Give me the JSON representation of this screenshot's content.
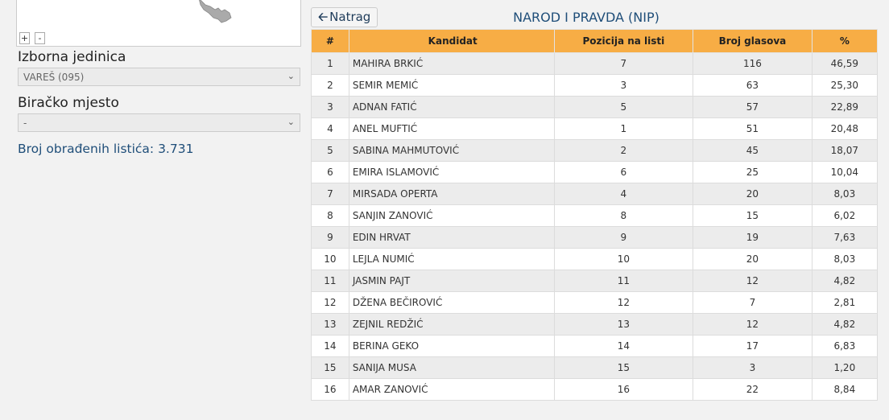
{
  "left": {
    "zoom_in": "+",
    "zoom_out": "-",
    "constituency_label": "Izborna jedinica",
    "constituency_value": "VAREŠ (095)",
    "polling_label": "Biračko mjesto",
    "polling_value": "-",
    "processed_text": "Broj obrađenih listića: 3.731"
  },
  "header": {
    "back_label": "Natrag",
    "party_title": "NAROD I PRAVDA (NIP)"
  },
  "table": {
    "columns": [
      "#",
      "Kandidat",
      "Pozicija na listi",
      "Broj glasova",
      "%"
    ],
    "rows": [
      [
        "1",
        "MAHIRA BRKIĆ",
        "7",
        "116",
        "46,59"
      ],
      [
        "2",
        "SEMIR MEMIĆ",
        "3",
        "63",
        "25,30"
      ],
      [
        "3",
        "ADNAN FATIĆ",
        "5",
        "57",
        "22,89"
      ],
      [
        "4",
        "ANEL MUFTIĆ",
        "1",
        "51",
        "20,48"
      ],
      [
        "5",
        "SABINA MAHMUTOVIĆ",
        "2",
        "45",
        "18,07"
      ],
      [
        "6",
        "EMIRA ISLAMOVIĆ",
        "6",
        "25",
        "10,04"
      ],
      [
        "7",
        "MIRSADA OPERTA",
        "4",
        "20",
        "8,03"
      ],
      [
        "8",
        "SANJIN ZANOVIĆ",
        "8",
        "15",
        "6,02"
      ],
      [
        "9",
        "EDIN HRVAT",
        "9",
        "19",
        "7,63"
      ],
      [
        "10",
        "LEJLA NUMIĆ",
        "10",
        "20",
        "8,03"
      ],
      [
        "11",
        "JASMIN PAJT",
        "11",
        "12",
        "4,82"
      ],
      [
        "12",
        "DŽENA BEČIROVIĆ",
        "12",
        "7",
        "2,81"
      ],
      [
        "13",
        "ZEJNIL REDŽIĆ",
        "13",
        "12",
        "4,82"
      ],
      [
        "14",
        "BERINA GEKO",
        "14",
        "17",
        "6,83"
      ],
      [
        "15",
        "SANIJA MUSA",
        "15",
        "3",
        "1,20"
      ],
      [
        "16",
        "AMAR ZANOVIĆ",
        "16",
        "22",
        "8,84"
      ]
    ]
  },
  "icons": {
    "back": "arrow-left-icon",
    "select": "chevron-down-icon"
  },
  "colors": {
    "header_bg": "#f7ad45",
    "title": "#1f4e79"
  }
}
